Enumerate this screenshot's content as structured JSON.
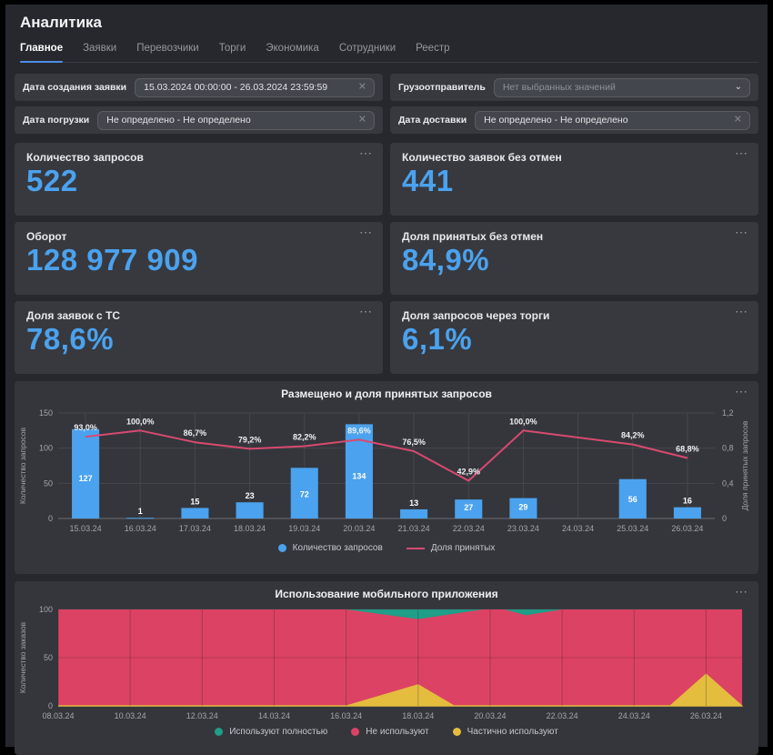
{
  "page": {
    "title": "Аналитика"
  },
  "tabs": [
    {
      "id": "glavnoe",
      "label": "Главное",
      "active": true
    },
    {
      "id": "zayavki",
      "label": "Заявки",
      "active": false
    },
    {
      "id": "perevozchiki",
      "label": "Перевозчики",
      "active": false
    },
    {
      "id": "torgi",
      "label": "Торги",
      "active": false
    },
    {
      "id": "ekonomika",
      "label": "Экономика",
      "active": false
    },
    {
      "id": "sotrudniki",
      "label": "Сотрудники",
      "active": false
    },
    {
      "id": "reestr",
      "label": "Реестр",
      "active": false
    }
  ],
  "filters": [
    {
      "id": "request-created-date",
      "label": "Дата создания заявки",
      "value": "15.03.2024 00:00:00 - 26.03.2024 23:59:59",
      "kind": "clearable",
      "placeholder": false
    },
    {
      "id": "shipper",
      "label": "Грузоотправитель",
      "value": "Нет выбранных значений",
      "kind": "dropdown",
      "placeholder": true
    },
    {
      "id": "loading-date",
      "label": "Дата погрузки",
      "value": "Не определено - Не определено",
      "kind": "clearable",
      "placeholder": false
    },
    {
      "id": "delivery-date",
      "label": "Дата доставки",
      "value": "Не определено - Не определено",
      "kind": "clearable",
      "placeholder": false
    }
  ],
  "kpis": [
    {
      "id": "requests-count",
      "label": "Количество запросов",
      "value": "522"
    },
    {
      "id": "orders-without-cancel",
      "label": "Количество заявок без отмен",
      "value": "441"
    },
    {
      "id": "turnover",
      "label": "Оборот",
      "value": "128 977 909"
    },
    {
      "id": "accepted-share",
      "label": "Доля принятых без отмен",
      "value": "84,9%"
    },
    {
      "id": "orders-with-vehicle",
      "label": "Доля заявок с ТС",
      "value": "78,6%"
    },
    {
      "id": "auction-share",
      "label": "Доля запросов через торги",
      "value": "6,1%"
    }
  ],
  "colors": {
    "accent_blue": "#4ba2ee",
    "bar_blue": "#4ba2ee",
    "line_pink": "#d84a6e",
    "area_red": "#dc4263",
    "area_teal": "#1f9e88",
    "area_yellow": "#e4bd3e",
    "card_bg": "#37393f",
    "page_bg": "#26282d"
  },
  "chart_data": [
    {
      "type": "bar",
      "title": "Размещено и доля принятых запросов",
      "categories": [
        "15.03.24",
        "16.03.24",
        "17.03.24",
        "18.03.24",
        "19.03.24",
        "20.03.24",
        "21.03.24",
        "22.03.24",
        "23.03.24",
        "24.03.24",
        "25.03.24",
        "26.03.24"
      ],
      "ylabel_left": "Количество запросов",
      "ylabel_right": "Доля принятых запросов",
      "ylim_left": [
        0,
        150
      ],
      "yticks_left": [
        "150",
        "100",
        "50",
        "0"
      ],
      "ylim_right": [
        0,
        1.2
      ],
      "yticks_right": [
        "1,2",
        "0,8",
        "0,4",
        "0"
      ],
      "grid": true,
      "legend_position": "bottom",
      "series": [
        {
          "name": "Количество запросов",
          "type": "bar",
          "color": "#4ba2ee",
          "values": [
            127,
            1,
            15,
            23,
            72,
            134,
            13,
            27,
            29,
            null,
            56,
            16
          ]
        },
        {
          "name": "Доля принятых",
          "type": "line",
          "color": "#d84a6e",
          "values": [
            0.93,
            1.0,
            0.867,
            0.792,
            0.822,
            0.896,
            0.765,
            0.429,
            1.0,
            null,
            0.842,
            0.688
          ],
          "labels": [
            "93,0%",
            "100,0%",
            "86,7%",
            "79,2%",
            "82,2%",
            "89,6%",
            "76,5%",
            "42,9%",
            "100,0%",
            null,
            "84,2%",
            "68,8%"
          ]
        }
      ]
    },
    {
      "type": "area",
      "title": "Использование мобильного приложения",
      "ylabel": "Количество заказов",
      "ylim": [
        0,
        100
      ],
      "yticks": [
        "100",
        "50",
        "0"
      ],
      "x_domain": [
        0,
        19
      ],
      "xticks_pos": [
        0,
        2,
        4,
        6,
        8,
        10,
        12,
        14,
        16,
        18
      ],
      "xtick_labels": [
        "08.03.24",
        "10.03.24",
        "12.03.24",
        "14.03.24",
        "16.03.24",
        "18.03.24",
        "20.03.24",
        "22.03.24",
        "24.03.24",
        "26.03.24"
      ],
      "grid": true,
      "legend_position": "bottom",
      "series": [
        {
          "name": "Не используют",
          "color": "#dc4263",
          "role": "base",
          "extent": [
            0,
            19
          ],
          "top_value": 100
        },
        {
          "name": "Используют полностью",
          "color": "#1f9e88",
          "role": "top-notch",
          "notches": [
            [
              [
                8,
                0
              ],
              [
                10,
                10
              ],
              [
                11.8,
                0
              ]
            ],
            [
              [
                12.4,
                0
              ],
              [
                13,
                6
              ],
              [
                14,
                0
              ]
            ]
          ]
        },
        {
          "name": "Частично используют",
          "color": "#e4bd3e",
          "role": "bottom-peak",
          "peaks": [
            [
              [
                8,
                0
              ],
              [
                10,
                22
              ],
              [
                11,
                0
              ]
            ],
            [
              [
                17,
                0
              ],
              [
                18,
                33
              ],
              [
                19,
                0
              ]
            ]
          ]
        }
      ],
      "legend": [
        {
          "label": "Используют полностью",
          "color": "#1f9e88"
        },
        {
          "label": "Не используют",
          "color": "#dc4263"
        },
        {
          "label": "Частично используют",
          "color": "#e4bd3e"
        }
      ]
    }
  ]
}
